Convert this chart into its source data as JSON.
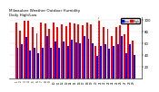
{
  "title": "Milwaukee Weather Outdoor Humidity",
  "subtitle": "Daily High/Low",
  "high_color": "#ff0000",
  "low_color": "#0000ff",
  "background_color": "#ffffff",
  "legend_high": "High",
  "legend_low": "Low",
  "ylim": [
    0,
    105
  ],
  "yticks": [
    20,
    40,
    60,
    80,
    100
  ],
  "dashed_line_index": 19.5,
  "categories": [
    "1",
    "2",
    "3",
    "4",
    "5",
    "6",
    "7",
    "8",
    "9",
    "10",
    "11",
    "12",
    "13",
    "14",
    "15",
    "16",
    "17",
    "18",
    "19",
    "20",
    "21",
    "22",
    "23",
    "24",
    "25",
    "26",
    "27",
    "28",
    "29"
  ],
  "highs": [
    96,
    82,
    99,
    99,
    87,
    77,
    96,
    94,
    85,
    95,
    87,
    93,
    90,
    95,
    94,
    92,
    91,
    96,
    93,
    56,
    99,
    87,
    84,
    72,
    88,
    91,
    75,
    94,
    65
  ],
  "lows": [
    52,
    58,
    70,
    48,
    52,
    43,
    52,
    72,
    52,
    63,
    52,
    63,
    55,
    66,
    62,
    60,
    73,
    68,
    60,
    38,
    55,
    58,
    50,
    55,
    58,
    73,
    43,
    58,
    40
  ]
}
